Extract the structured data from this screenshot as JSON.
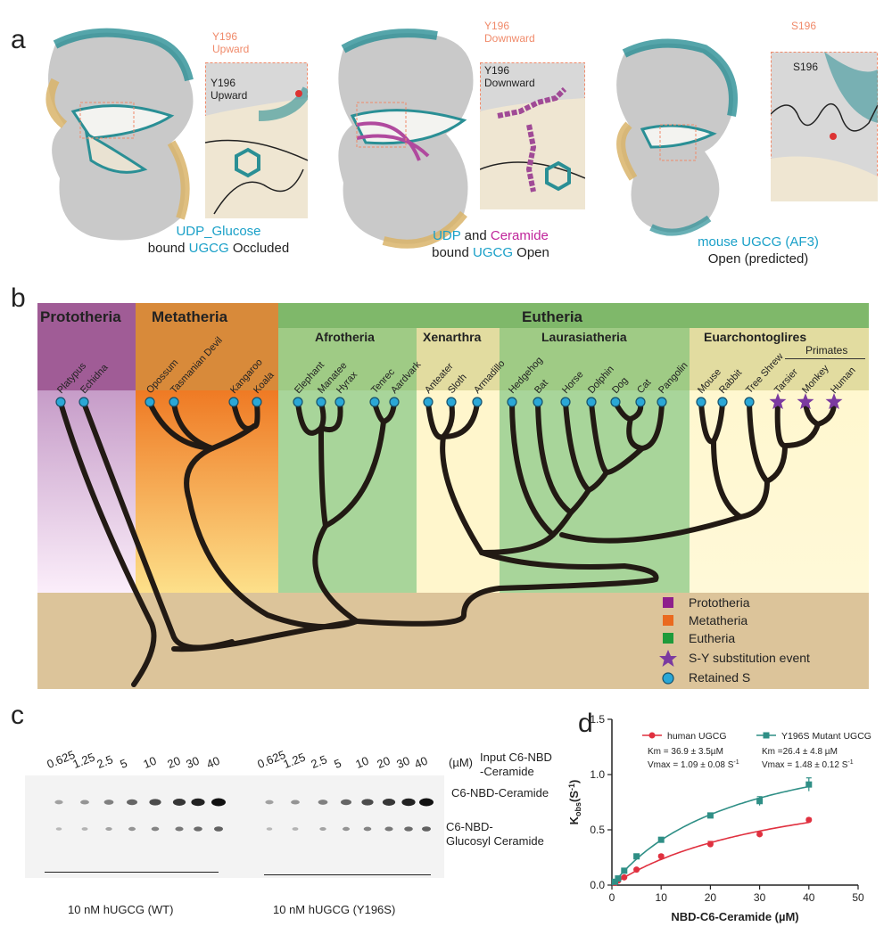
{
  "panel_a": {
    "letter": "a",
    "struct1": {
      "top_label_line1": "Y196",
      "top_label_line2": "Upward",
      "zoom_label_line1": "Y196",
      "zoom_label_line2": "Upward",
      "caption_part1": "UDP_Glucose",
      "caption_part2": "bound ",
      "caption_part3": "UGCG",
      "caption_part4": " Occluded"
    },
    "struct2": {
      "top_label_line1": "Y196",
      "top_label_line2": "Downward",
      "zoom_label_line1": "Y196",
      "zoom_label_line2": "Downward",
      "caption_part1": "UDP",
      "caption_part2": " and ",
      "caption_part3": "Ceramide",
      "caption_part4": "bound ",
      "caption_part5": "UGCG",
      "caption_part6": " Open"
    },
    "struct3": {
      "top_label": "S196",
      "zoom_label": "S196",
      "caption_part1": "mouse UGCG (AF3)",
      "caption_part2": "Open (predicted)"
    },
    "colors": {
      "teal": "#2a8f95",
      "tan": "#d9b46a",
      "grey": "#c8c8c8",
      "salmon": "#f08a6a"
    }
  },
  "panel_b": {
    "letter": "b",
    "clades": [
      "Prototheria",
      "Metatheria",
      "Eutheria"
    ],
    "subclades": [
      "Afrotheria",
      "Xenarthra",
      "Laurasiatheria",
      "Euarchontoglires",
      "Primates"
    ],
    "species": [
      "Platypus",
      "Echidna",
      "Opossum",
      "Tasmanian Devil",
      "Kangaroo",
      "Koala",
      "Elephant",
      "Manatee",
      "Hyrax",
      "Tenrec",
      "Aardvark",
      "Anteater",
      "Sloth",
      "Armadillo",
      "Hedgehog",
      "Bat",
      "Horse",
      "Dolphin",
      "Dog",
      "Cat",
      "Pangolin",
      "Mouse",
      "Rabbit",
      "Tree Shrew",
      "Tarsier",
      "Monkey",
      "Human"
    ],
    "substitution_species": [
      "Tarsier",
      "Monkey",
      "Human"
    ],
    "legend": [
      {
        "label": "Prototheria",
        "color": "#8e1f8c",
        "shape": "square"
      },
      {
        "label": "Metatheria",
        "color": "#ea6a1f",
        "shape": "square"
      },
      {
        "label": "Eutheria",
        "color": "#1f9b3b",
        "shape": "square"
      },
      {
        "label": "S-Y substitution event",
        "color": "#7b3aa0",
        "shape": "star"
      },
      {
        "label": "Retained S",
        "color": "#2aa7d6",
        "shape": "circle"
      }
    ]
  },
  "panel_c": {
    "letter": "c",
    "lane_labels": [
      "0.625",
      "1.25",
      "2.5",
      "5",
      "10",
      "20",
      "30",
      "40"
    ],
    "unit_label": "(µM)",
    "input_label_line1": "Input C6-NBD",
    "input_label_line2": "-Ceramide",
    "band1_label": "C6-NBD-Ceramide",
    "band2_label_line1": "C6-NBD-",
    "band2_label_line2": "Glucosyl Ceramide",
    "group1_label": "10 nM hUGCG (WT)",
    "group2_label": "10 nM hUGCG (Y196S)"
  },
  "panel_d": {
    "letter": "d",
    "chart_data": {
      "type": "scatter",
      "xlabel": "NBD-C6-Ceramide (µM)",
      "ylabel_main": "K",
      "ylabel_sub": "obs",
      "ylabel_unit": "(S",
      "ylabel_exp": "-1",
      "ylabel_close": ")",
      "xlim": [
        0,
        50
      ],
      "ylim": [
        0,
        1.5
      ],
      "xticks": [
        "0",
        "10",
        "20",
        "30",
        "40",
        "50"
      ],
      "yticks": [
        "0.0",
        "0.5",
        "1.0",
        "1.5"
      ],
      "series": [
        {
          "name": "human UGCG",
          "color": "#e0303f",
          "marker": "circle",
          "x": [
            0.625,
            1.25,
            2.5,
            5,
            10,
            20,
            30,
            40
          ],
          "y": [
            0.02,
            0.04,
            0.07,
            0.14,
            0.26,
            0.37,
            0.46,
            0.59
          ],
          "err": [
            0.005,
            0.008,
            0.01,
            0.01,
            0.015,
            0.025,
            0.015,
            0.015
          ],
          "km_text": "Km = 36.9 ± 3.5µM",
          "vmax_text": "Vmax = 1.09 ± 0.08 S",
          "vmax_exp": "-1",
          "km": 36.9,
          "vmax": 1.09
        },
        {
          "name": "Y196S Mutant UGCG",
          "color": "#2f8f86",
          "marker": "square",
          "x": [
            0.625,
            1.25,
            2.5,
            5,
            10,
            20,
            30,
            40
          ],
          "y": [
            0.03,
            0.06,
            0.13,
            0.26,
            0.41,
            0.63,
            0.76,
            0.91
          ],
          "err": [
            0.008,
            0.01,
            0.015,
            0.02,
            0.02,
            0.02,
            0.04,
            0.06
          ],
          "km_text": "Km =26.4 ± 4.8 µM",
          "vmax_text": "Vmax = 1.48 ± 0.12 S",
          "vmax_exp": "-1",
          "km": 26.4,
          "vmax": 1.48
        }
      ]
    }
  }
}
